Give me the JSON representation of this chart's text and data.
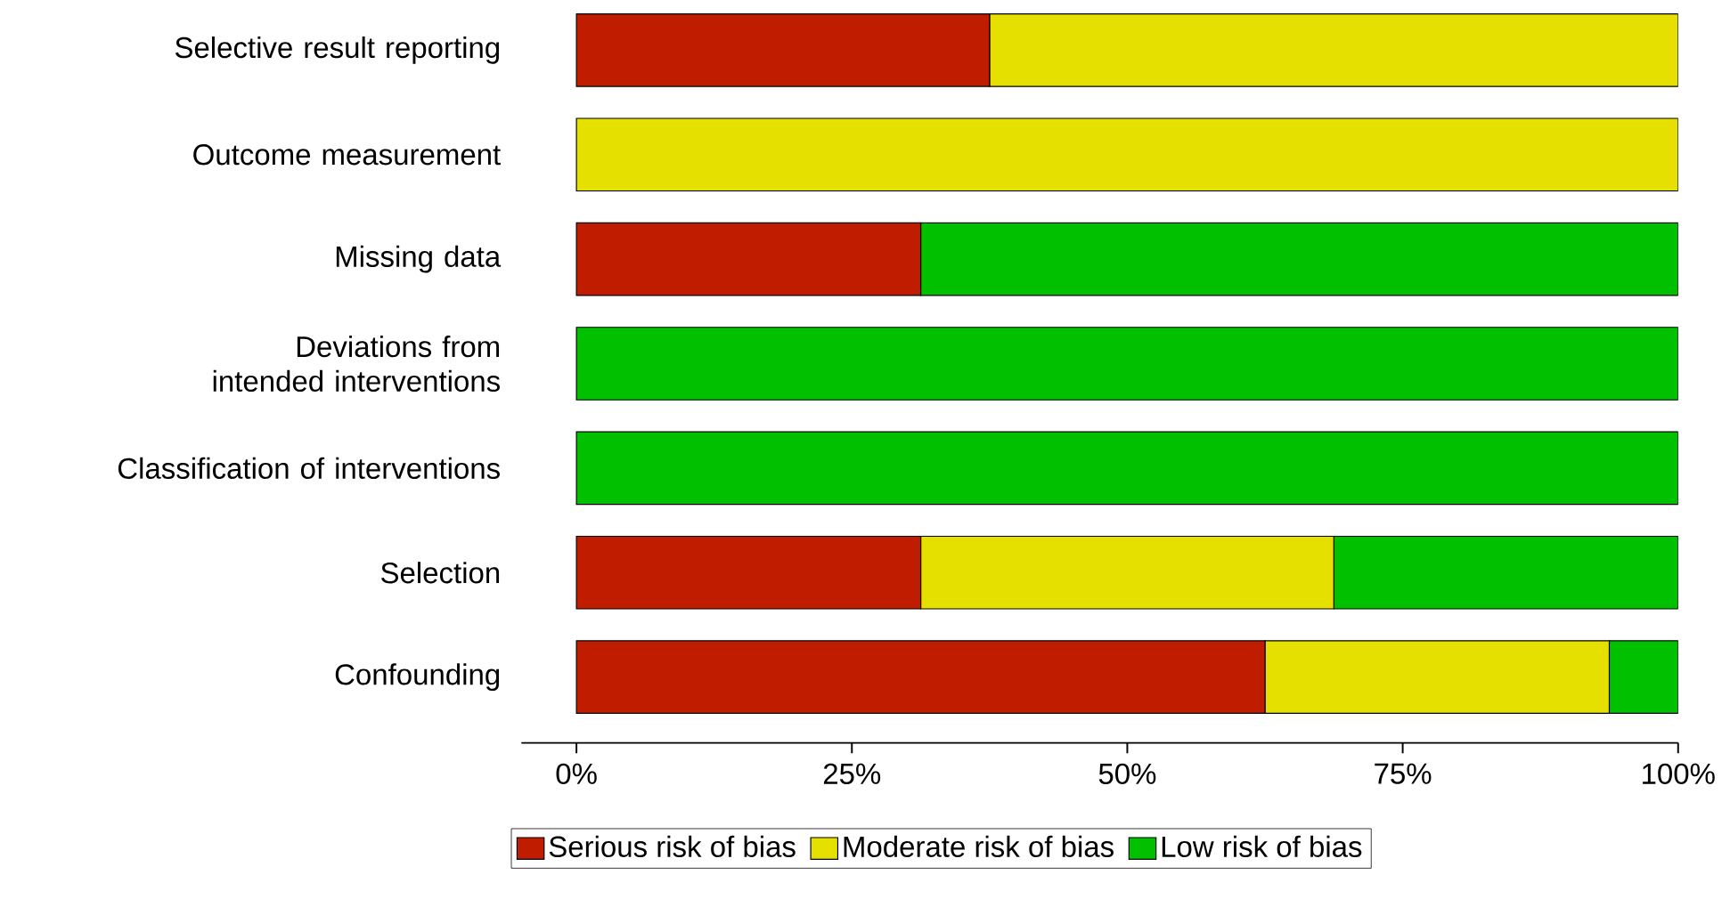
{
  "chart_data": {
    "type": "bar",
    "orientation": "horizontal",
    "stacked": true,
    "categories": [
      "Selective result reporting",
      "Outcome measurement",
      "Missing data",
      "Deviations from intended interventions",
      "Classification of interventions",
      "Selection",
      "Confounding"
    ],
    "series": [
      {
        "name": "Serious risk of bias",
        "color": "#c01c00",
        "values": [
          37.5,
          0,
          31.25,
          0,
          0,
          31.25,
          62.5
        ]
      },
      {
        "name": "Moderate risk of bias",
        "color": "#e6e000",
        "values": [
          62.5,
          100,
          0,
          0,
          0,
          37.5,
          31.25
        ]
      },
      {
        "name": "Low risk of bias",
        "color": "#00c000",
        "values": [
          0,
          0,
          68.75,
          100,
          100,
          31.25,
          6.25
        ]
      }
    ],
    "xlim": [
      -5,
      100
    ],
    "xticks": [
      {
        "value": 0,
        "label": "0%"
      },
      {
        "value": 25,
        "label": "25%"
      },
      {
        "value": 50,
        "label": "50%"
      },
      {
        "value": 75,
        "label": "75%"
      },
      {
        "value": 100,
        "label": "100%"
      }
    ],
    "grid": false,
    "legend": "bottom"
  }
}
